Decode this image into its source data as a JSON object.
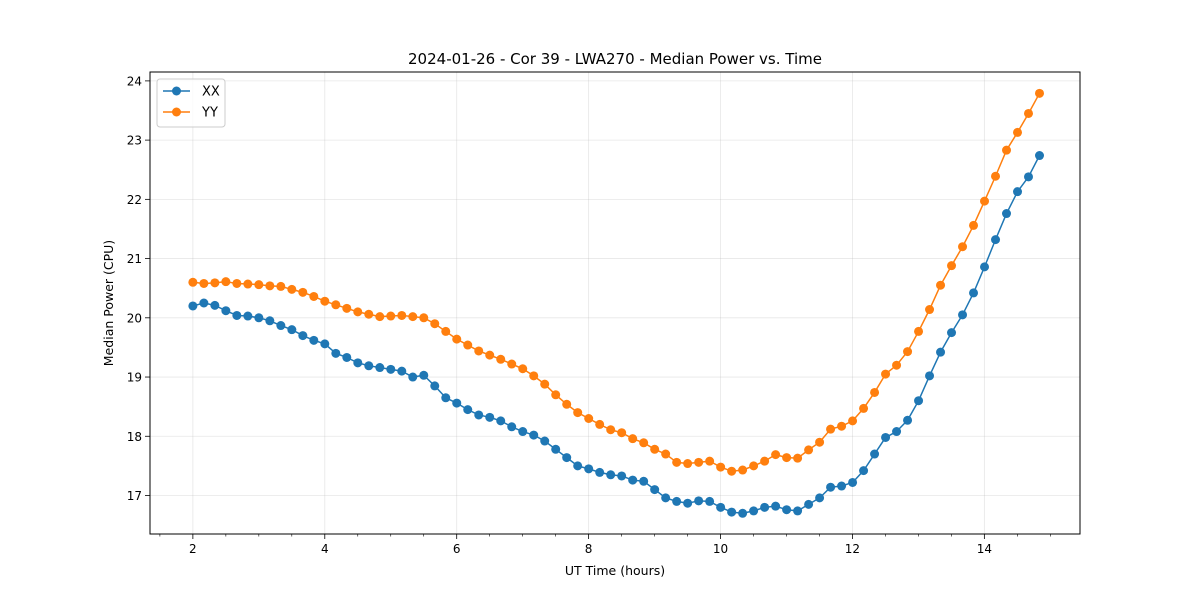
{
  "chart_data": {
    "type": "line",
    "title": "2024-01-26 - Cor 39 - LWA270 - Median Power vs. Time",
    "xlabel": "UT Time (hours)",
    "ylabel": "Median Power (CPU)",
    "xlim": [
      1.35,
      15.45
    ],
    "ylim": [
      16.35,
      24.15
    ],
    "xticks": [
      2,
      4,
      6,
      8,
      10,
      12,
      14
    ],
    "xtick_labels": [
      "2",
      "4",
      "6",
      "8",
      "10",
      "12",
      "14"
    ],
    "yticks": [
      17,
      18,
      19,
      20,
      21,
      22,
      23,
      24
    ],
    "ytick_labels": [
      "17",
      "18",
      "19",
      "20",
      "21",
      "22",
      "23",
      "24"
    ],
    "grid": true,
    "legend_position": "top-left",
    "x_start": 2.0,
    "x_step": 0.1667,
    "series": [
      {
        "name": "XX",
        "color": "#1f77b4",
        "values": [
          20.2,
          20.25,
          20.21,
          20.12,
          20.04,
          20.03,
          20.0,
          19.95,
          19.87,
          19.8,
          19.7,
          19.62,
          19.56,
          19.4,
          19.33,
          19.24,
          19.19,
          19.16,
          19.13,
          19.1,
          19.0,
          19.03,
          18.85,
          18.65,
          18.56,
          18.45,
          18.36,
          18.32,
          18.26,
          18.16,
          18.08,
          18.02,
          17.92,
          17.78,
          17.64,
          17.5,
          17.45,
          17.39,
          17.35,
          17.33,
          17.26,
          17.24,
          17.1,
          16.96,
          16.9,
          16.87,
          16.91,
          16.9,
          16.8,
          16.72,
          16.7,
          16.74,
          16.8,
          16.82,
          16.76,
          16.74,
          16.85,
          16.96,
          17.14,
          17.16,
          17.22,
          17.42,
          17.7,
          17.98,
          18.08,
          18.27,
          18.6,
          19.02,
          19.42,
          19.75,
          20.05,
          20.42,
          20.86,
          21.32,
          21.76,
          22.13,
          22.38,
          22.74
        ]
      },
      {
        "name": "YY",
        "color": "#ff7f0e",
        "values": [
          20.6,
          20.58,
          20.59,
          20.61,
          20.58,
          20.57,
          20.56,
          20.54,
          20.53,
          20.48,
          20.43,
          20.36,
          20.28,
          20.22,
          20.16,
          20.1,
          20.06,
          20.02,
          20.03,
          20.04,
          20.02,
          20.0,
          19.9,
          19.77,
          19.64,
          19.54,
          19.44,
          19.37,
          19.3,
          19.22,
          19.14,
          19.02,
          18.88,
          18.7,
          18.54,
          18.4,
          18.3,
          18.2,
          18.11,
          18.06,
          17.96,
          17.89,
          17.78,
          17.7,
          17.56,
          17.54,
          17.56,
          17.58,
          17.48,
          17.41,
          17.43,
          17.5,
          17.58,
          17.69,
          17.64,
          17.63,
          17.77,
          17.9,
          18.12,
          18.17,
          18.26,
          18.47,
          18.74,
          19.05,
          19.2,
          19.43,
          19.77,
          20.14,
          20.55,
          20.88,
          21.2,
          21.56,
          21.97,
          22.39,
          22.83,
          23.13,
          23.45,
          23.79
        ]
      }
    ]
  }
}
